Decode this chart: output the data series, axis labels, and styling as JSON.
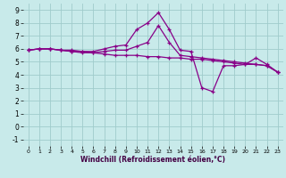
{
  "x": [
    0,
    1,
    2,
    3,
    4,
    5,
    6,
    7,
    8,
    9,
    10,
    11,
    12,
    13,
    14,
    15,
    16,
    17,
    18,
    19,
    20,
    21,
    22,
    23
  ],
  "line1": [
    5.9,
    6.0,
    6.0,
    5.9,
    5.8,
    5.8,
    5.8,
    6.0,
    6.2,
    6.3,
    7.5,
    8.0,
    8.8,
    7.5,
    5.9,
    5.8,
    3.0,
    2.7,
    4.7,
    4.7,
    4.8,
    5.3,
    4.8,
    4.2
  ],
  "line2": [
    5.9,
    6.0,
    6.0,
    5.9,
    5.8,
    5.7,
    5.7,
    5.8,
    5.9,
    5.9,
    6.2,
    6.5,
    7.8,
    6.5,
    5.5,
    5.4,
    5.3,
    5.2,
    5.1,
    5.0,
    4.9,
    4.8,
    4.7,
    4.2
  ],
  "line3": [
    5.9,
    6.0,
    6.0,
    5.9,
    5.9,
    5.8,
    5.7,
    5.6,
    5.5,
    5.5,
    5.5,
    5.4,
    5.4,
    5.3,
    5.3,
    5.2,
    5.2,
    5.1,
    5.0,
    4.9,
    4.8,
    4.8,
    4.7,
    4.2
  ],
  "line_color": "#880088",
  "bg_color": "#c8eaea",
  "grid_color": "#a0cccc",
  "xlabel": "Windchill (Refroidissement éolien,°C)",
  "xlim": [
    -0.5,
    23.5
  ],
  "ylim": [
    -1.5,
    9.5
  ],
  "xticks": [
    0,
    1,
    2,
    3,
    4,
    5,
    6,
    7,
    8,
    9,
    10,
    11,
    12,
    13,
    14,
    15,
    16,
    17,
    18,
    19,
    20,
    21,
    22,
    23
  ],
  "yticks": [
    -1,
    0,
    1,
    2,
    3,
    4,
    5,
    6,
    7,
    8,
    9
  ],
  "xlabel_color": "#440044",
  "xlabel_fontsize": 5.5,
  "tick_fontsize_x": 4.5,
  "tick_fontsize_y": 5.5,
  "linewidth": 0.9,
  "markersize": 3.5
}
